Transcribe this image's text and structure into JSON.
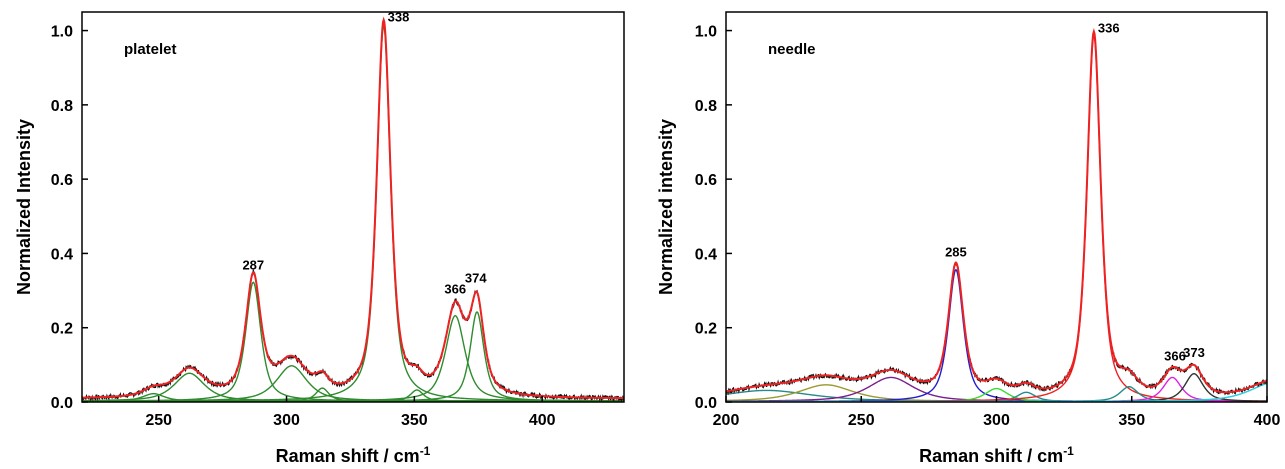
{
  "colors": {
    "fit": "#ee2222",
    "data": "#111111",
    "green": "#2e8b2e",
    "blue": "#1f1fd0",
    "purple": "#7a1f8c",
    "olive": "#9a9a30",
    "teal": "#2a8a8a",
    "lime": "#33dd33",
    "magenta": "#e020e0",
    "cyan": "#20d0e0",
    "dark": "#333333"
  },
  "chart_data": [
    {
      "type": "line",
      "panel_label": "platelet",
      "xlabel": "Raman shift / cm",
      "xlabel_sup": "-1",
      "ylabel": "Normalized Intensity",
      "xlim": [
        220,
        432
      ],
      "ylim": [
        0,
        1.05
      ],
      "xticks": [
        250,
        300,
        350,
        400
      ],
      "yticks": [
        0.0,
        0.2,
        0.4,
        0.6,
        0.8,
        1.0
      ],
      "ytick_labels": [
        "0.0",
        "0.2",
        "0.4",
        "0.6",
        "0.8",
        "1.0"
      ],
      "baseline": 0.008,
      "peak_labels": [
        {
          "text": "287",
          "x": 287,
          "y": 0.335
        },
        {
          "text": "338",
          "x": 338,
          "y": 1.03
        },
        {
          "text": "366",
          "x": 366,
          "y": 0.27
        },
        {
          "text": "374",
          "x": 374,
          "y": 0.3
        }
      ],
      "components": [
        {
          "center": 248,
          "height": 0.02,
          "width": 5,
          "color_key": "green"
        },
        {
          "center": 262,
          "height": 0.075,
          "width": 7,
          "color_key": "green"
        },
        {
          "center": 287,
          "height": 0.32,
          "width": 3.5,
          "color_key": "green"
        },
        {
          "center": 302,
          "height": 0.095,
          "width": 7,
          "color_key": "green"
        },
        {
          "center": 314,
          "height": 0.035,
          "width": 3,
          "color_key": "green"
        },
        {
          "center": 338,
          "height": 1.01,
          "width": 3.2,
          "color_key": "green"
        },
        {
          "center": 351,
          "height": 0.03,
          "width": 3,
          "color_key": "green"
        },
        {
          "center": 366,
          "height": 0.23,
          "width": 4.5,
          "color_key": "green"
        },
        {
          "center": 374.5,
          "height": 0.24,
          "width": 3.2,
          "color_key": "green"
        }
      ]
    },
    {
      "type": "line",
      "panel_label": "needle",
      "xlabel": "Raman shift / cm",
      "xlabel_sup": "-1",
      "ylabel": "Normalized intensity",
      "xlim": [
        200,
        400
      ],
      "ylim": [
        0,
        1.05
      ],
      "xticks": [
        200,
        250,
        300,
        350,
        400
      ],
      "yticks": [
        0.0,
        0.2,
        0.4,
        0.6,
        0.8,
        1.0
      ],
      "ytick_labels": [
        "0.0",
        "0.2",
        "0.4",
        "0.6",
        "0.8",
        "1.0"
      ],
      "baseline": 0.004,
      "peak_labels": [
        {
          "text": "285",
          "x": 285,
          "y": 0.37
        },
        {
          "text": "336",
          "x": 336,
          "y": 1.0
        },
        {
          "text": "366",
          "x": 366,
          "y": 0.09
        },
        {
          "text": "373",
          "x": 373,
          "y": 0.1
        }
      ],
      "components": [
        {
          "center": 215,
          "height": 0.03,
          "width": 20,
          "color_key": "teal"
        },
        {
          "center": 237,
          "height": 0.045,
          "width": 12,
          "color_key": "olive"
        },
        {
          "center": 261,
          "height": 0.065,
          "width": 10,
          "color_key": "purple"
        },
        {
          "center": 285,
          "height": 0.355,
          "width": 3.3,
          "color_key": "blue"
        },
        {
          "center": 300,
          "height": 0.035,
          "width": 5,
          "color_key": "lime"
        },
        {
          "center": 311,
          "height": 0.025,
          "width": 4,
          "color_key": "teal"
        },
        {
          "center": 336,
          "height": 0.985,
          "width": 3.0,
          "color_key": "fit"
        },
        {
          "center": 349,
          "height": 0.04,
          "width": 4,
          "color_key": "teal"
        },
        {
          "center": 365,
          "height": 0.065,
          "width": 4,
          "color_key": "magenta"
        },
        {
          "center": 373,
          "height": 0.075,
          "width": 4,
          "color_key": "dark"
        },
        {
          "center": 402,
          "height": 0.05,
          "width": 10,
          "color_key": "cyan"
        }
      ]
    }
  ]
}
